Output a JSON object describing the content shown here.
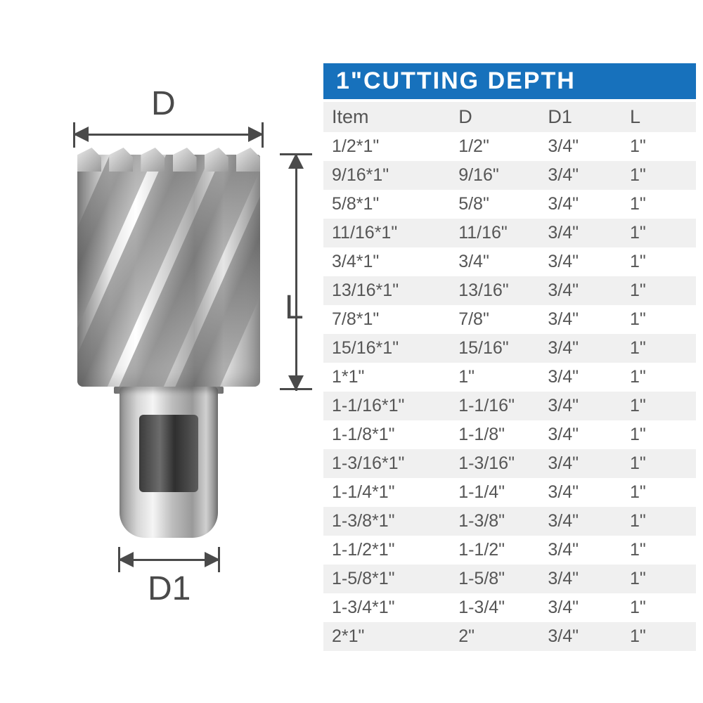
{
  "banner": {
    "text": "1\"CUTTING DEPTH",
    "bg": "#1771bc",
    "fg": "#ffffff"
  },
  "diagram": {
    "labels": {
      "D": "D",
      "D1": "D1",
      "L": "L"
    },
    "label_fontsize": 48,
    "line_color": "#4a4a4a",
    "body_gradient": [
      "#7f7f7f",
      "#e6e6e6",
      "#ffffff",
      "#cfcfcf",
      "#a8a8a8",
      "#e6e6e6",
      "#909090"
    ],
    "shank_gradient": [
      "#8d8d8d",
      "#d6d6d6",
      "#f5f5f5",
      "#bcbcbc",
      "#9a9a9a",
      "#d0d0d0",
      "#7a7a7a"
    ]
  },
  "table": {
    "columns": [
      "Item",
      "D",
      "D1",
      "L"
    ],
    "col_widths_pct": [
      34,
      24,
      22,
      20
    ],
    "header_bg": "#f0f0f0",
    "row_bg_alt": [
      "#ffffff",
      "#f0f0f0"
    ],
    "text_color": "#565656",
    "header_fontsize": 27,
    "cell_fontsize": 25,
    "rows": [
      [
        "1/2*1\"",
        "1/2\"",
        "3/4\"",
        "1\""
      ],
      [
        "9/16*1\"",
        "9/16\"",
        "3/4\"",
        "1\""
      ],
      [
        "5/8*1\"",
        "5/8\"",
        "3/4\"",
        "1\""
      ],
      [
        "11/16*1\"",
        "11/16\"",
        "3/4\"",
        "1\""
      ],
      [
        "3/4*1\"",
        "3/4\"",
        "3/4\"",
        "1\""
      ],
      [
        "13/16*1\"",
        "13/16\"",
        "3/4\"",
        "1\""
      ],
      [
        "7/8*1\"",
        "7/8\"",
        "3/4\"",
        "1\""
      ],
      [
        "15/16*1\"",
        "15/16\"",
        "3/4\"",
        "1\""
      ],
      [
        "1*1\"",
        "1\"",
        "3/4\"",
        "1\""
      ],
      [
        "1-1/16*1\"",
        "1-1/16\"",
        "3/4\"",
        "1\""
      ],
      [
        "1-1/8*1\"",
        "1-1/8\"",
        "3/4\"",
        "1\""
      ],
      [
        "1-3/16*1\"",
        "1-3/16\"",
        "3/4\"",
        "1\""
      ],
      [
        "1-1/4*1\"",
        "1-1/4\"",
        "3/4\"",
        "1\""
      ],
      [
        "1-3/8*1\"",
        "1-3/8\"",
        "3/4\"",
        "1\""
      ],
      [
        "1-1/2*1\"",
        "1-1/2\"",
        "3/4\"",
        "1\""
      ],
      [
        "1-5/8*1\"",
        "1-5/8\"",
        "3/4\"",
        "1\""
      ],
      [
        "1-3/4*1\"",
        "1-3/4\"",
        "3/4\"",
        "1\""
      ],
      [
        "2*1\"",
        "2\"",
        "3/4\"",
        "1\""
      ]
    ]
  }
}
